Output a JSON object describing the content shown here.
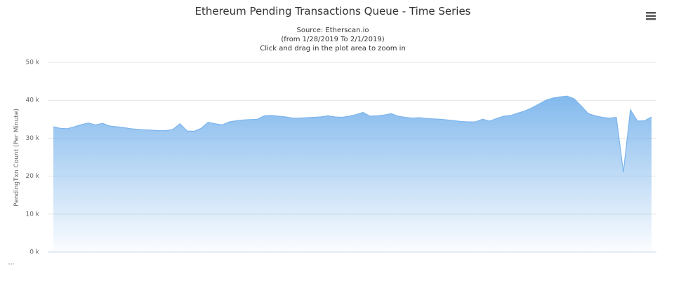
{
  "chart_data": {
    "type": "area",
    "title": "Ethereum Pending Transactions Queue - Time Series",
    "subtitle": [
      "Source: Etherscan.io",
      "(from 1/28/2019 To 2/1/2019)",
      "Click and drag in the plot area to zoom in"
    ],
    "y_label": "PendingTxn Count (Per Minute)",
    "color": "#7cb5ec",
    "grid": true,
    "ylim": [
      0,
      50000
    ],
    "yticks": [
      {
        "value": 0,
        "label": "0 k"
      },
      {
        "value": 10000,
        "label": "10 k"
      },
      {
        "value": 20000,
        "label": "20 k"
      },
      {
        "value": 30000,
        "label": "30 k"
      },
      {
        "value": 40000,
        "label": "40 k"
      },
      {
        "value": 50000,
        "label": "50 k"
      }
    ],
    "values": [
      33000,
      32600,
      32500,
      33000,
      33600,
      34000,
      33500,
      33900,
      33200,
      33000,
      32800,
      32500,
      32300,
      32200,
      32100,
      32000,
      32000,
      32300,
      33800,
      31900,
      31800,
      32600,
      34200,
      33800,
      33500,
      34300,
      34600,
      34800,
      34900,
      35000,
      35900,
      36000,
      35800,
      35600,
      35300,
      35300,
      35400,
      35500,
      35600,
      35900,
      35600,
      35500,
      35800,
      36200,
      36800,
      35800,
      35900,
      36100,
      36500,
      35800,
      35500,
      35300,
      35400,
      35200,
      35100,
      35000,
      34800,
      34600,
      34400,
      34300,
      34300,
      35000,
      34500,
      35200,
      35800,
      36000,
      36600,
      37200,
      38000,
      39000,
      40000,
      40600,
      40900,
      41100,
      40400,
      38500,
      36500,
      35900,
      35500,
      35300,
      35500,
      21000,
      37500,
      34500,
      34600,
      35600
    ]
  }
}
